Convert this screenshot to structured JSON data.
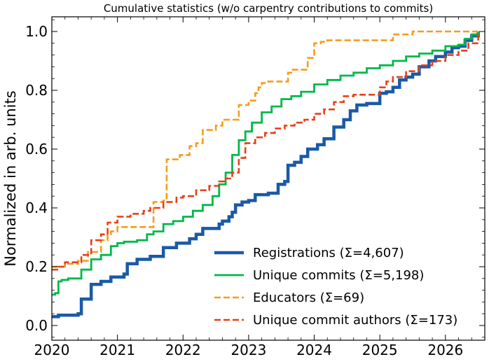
{
  "chart_data": {
    "type": "line",
    "title": "Cumulative statistics (w/o carpentry contributions to commits)",
    "xlabel": "",
    "ylabel": "Normalized in arb. units",
    "xlim": [
      2020.0,
      2026.6
    ],
    "ylim": [
      -0.05,
      1.05
    ],
    "x_ticks": [
      2020,
      2021,
      2022,
      2023,
      2024,
      2025,
      2026
    ],
    "x_tick_labels": [
      "2020",
      "2021",
      "2022",
      "2023",
      "2024",
      "2025",
      "2026"
    ],
    "y_ticks": [
      0.0,
      0.2,
      0.4,
      0.6,
      0.8,
      1.0
    ],
    "y_tick_labels": [
      "0.0",
      "0.2",
      "0.4",
      "0.6",
      "0.8",
      "1.0"
    ],
    "legend_position": "lower-right",
    "series": [
      {
        "name": "Registrations  (Σ=4,607)",
        "color": "#1a5aa6",
        "style": "solid",
        "width": 4.5,
        "x": [
          2020.0,
          2020.1,
          2020.4,
          2020.45,
          2020.6,
          2020.75,
          2020.9,
          2021.1,
          2021.15,
          2021.3,
          2021.5,
          2021.7,
          2021.9,
          2022.1,
          2022.2,
          2022.3,
          2022.55,
          2022.6,
          2022.7,
          2022.75,
          2022.8,
          2022.9,
          2023.0,
          2023.1,
          2023.3,
          2023.45,
          2023.55,
          2023.6,
          2023.7,
          2023.8,
          2023.9,
          2024.05,
          2024.15,
          2024.3,
          2024.45,
          2024.55,
          2024.65,
          2024.8,
          2025.0,
          2025.1,
          2025.2,
          2025.3,
          2025.4,
          2025.5,
          2025.6,
          2025.75,
          2025.85,
          2026.0,
          2026.1,
          2026.2,
          2026.3,
          2026.4,
          2026.5
        ],
        "y": [
          0.03,
          0.035,
          0.04,
          0.09,
          0.14,
          0.15,
          0.165,
          0.175,
          0.21,
          0.225,
          0.235,
          0.265,
          0.28,
          0.295,
          0.31,
          0.33,
          0.345,
          0.355,
          0.37,
          0.385,
          0.41,
          0.42,
          0.425,
          0.445,
          0.45,
          0.48,
          0.49,
          0.545,
          0.555,
          0.575,
          0.6,
          0.615,
          0.635,
          0.675,
          0.7,
          0.73,
          0.75,
          0.755,
          0.79,
          0.795,
          0.81,
          0.835,
          0.845,
          0.855,
          0.88,
          0.9,
          0.915,
          0.93,
          0.945,
          0.95,
          0.97,
          0.985,
          1.0
        ]
      },
      {
        "name": "Unique commits (Σ=5,198)",
        "color": "#00b84a",
        "style": "solid",
        "width": 2.8,
        "x": [
          2020.0,
          2020.05,
          2020.1,
          2020.15,
          2020.25,
          2020.45,
          2020.6,
          2020.75,
          2020.9,
          2021.0,
          2021.1,
          2021.3,
          2021.45,
          2021.55,
          2021.7,
          2021.85,
          2022.0,
          2022.15,
          2022.3,
          2022.45,
          2022.55,
          2022.65,
          2022.75,
          2022.85,
          2022.95,
          2023.05,
          2023.2,
          2023.35,
          2023.5,
          2023.65,
          2023.8,
          2024.0,
          2024.2,
          2024.4,
          2024.6,
          2024.8,
          2025.0,
          2025.2,
          2025.4,
          2025.6,
          2025.8,
          2026.0,
          2026.2,
          2026.3,
          2026.4,
          2026.5
        ],
        "y": [
          0.105,
          0.11,
          0.15,
          0.155,
          0.16,
          0.19,
          0.225,
          0.24,
          0.27,
          0.28,
          0.285,
          0.29,
          0.31,
          0.32,
          0.345,
          0.355,
          0.37,
          0.39,
          0.41,
          0.44,
          0.48,
          0.52,
          0.58,
          0.63,
          0.66,
          0.69,
          0.725,
          0.745,
          0.77,
          0.78,
          0.795,
          0.82,
          0.835,
          0.85,
          0.86,
          0.875,
          0.885,
          0.9,
          0.915,
          0.925,
          0.935,
          0.95,
          0.955,
          0.975,
          0.99,
          1.0
        ]
      },
      {
        "name": "Educators (Σ=69)",
        "color": "#f59c1b",
        "style": "dashed",
        "width": 2.6,
        "x": [
          2020.0,
          2020.2,
          2020.4,
          2020.55,
          2020.75,
          2020.85,
          2020.9,
          2021.0,
          2021.2,
          2021.5,
          2021.55,
          2021.7,
          2021.75,
          2021.95,
          2022.1,
          2022.2,
          2022.3,
          2022.5,
          2022.6,
          2022.75,
          2022.85,
          2023.0,
          2023.1,
          2023.15,
          2023.2,
          2023.3,
          2023.5,
          2023.6,
          2023.65,
          2023.8,
          2023.9,
          2024.0,
          2024.1,
          2024.2,
          2024.35,
          2024.5,
          2025.0,
          2025.2,
          2025.4,
          2025.5,
          2026.0,
          2026.5
        ],
        "y": [
          0.2,
          0.21,
          0.22,
          0.25,
          0.29,
          0.31,
          0.32,
          0.335,
          0.335,
          0.335,
          0.42,
          0.425,
          0.565,
          0.58,
          0.61,
          0.62,
          0.665,
          0.68,
          0.7,
          0.7,
          0.75,
          0.765,
          0.79,
          0.81,
          0.825,
          0.83,
          0.83,
          0.86,
          0.87,
          0.87,
          0.91,
          0.96,
          0.965,
          0.97,
          0.97,
          0.97,
          0.97,
          0.99,
          0.99,
          1.0,
          1.0,
          1.0
        ]
      },
      {
        "name": "Unique commit authors (Σ=173)",
        "color": "#e6401a",
        "style": "dashed",
        "width": 2.6,
        "x": [
          2020.0,
          2020.1,
          2020.2,
          2020.45,
          2020.6,
          2020.75,
          2020.85,
          2021.0,
          2021.2,
          2021.4,
          2021.5,
          2021.7,
          2021.9,
          2022.0,
          2022.2,
          2022.4,
          2022.55,
          2022.65,
          2022.75,
          2022.85,
          2022.95,
          2023.1,
          2023.25,
          2023.4,
          2023.55,
          2023.7,
          2023.85,
          2024.0,
          2024.15,
          2024.3,
          2024.45,
          2024.6,
          2024.8,
          2025.0,
          2025.1,
          2025.2,
          2025.4,
          2025.6,
          2025.8,
          2026.0,
          2026.2,
          2026.35,
          2026.5
        ],
        "y": [
          0.19,
          0.2,
          0.215,
          0.24,
          0.29,
          0.31,
          0.35,
          0.37,
          0.38,
          0.39,
          0.4,
          0.42,
          0.435,
          0.44,
          0.46,
          0.475,
          0.49,
          0.5,
          0.52,
          0.57,
          0.62,
          0.64,
          0.655,
          0.67,
          0.68,
          0.69,
          0.7,
          0.72,
          0.735,
          0.76,
          0.78,
          0.785,
          0.785,
          0.81,
          0.83,
          0.845,
          0.865,
          0.885,
          0.9,
          0.92,
          0.935,
          0.96,
          1.0
        ]
      }
    ]
  }
}
